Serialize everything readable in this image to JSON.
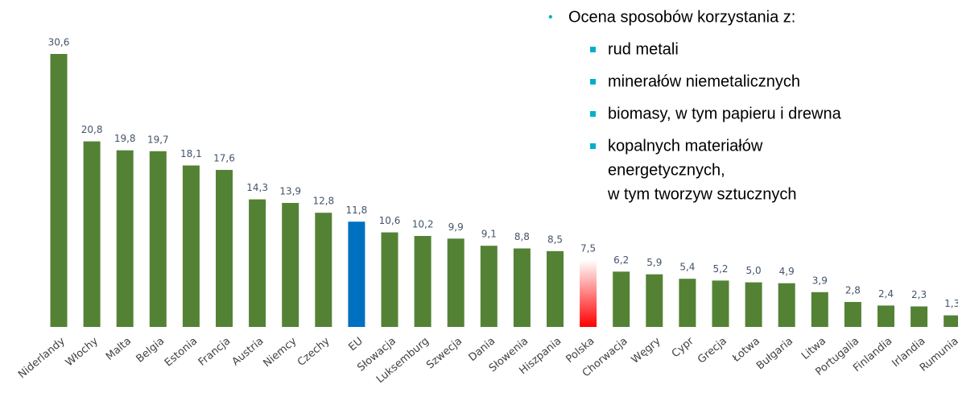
{
  "chart_data": {
    "type": "bar",
    "categories": [
      "Niderlandy",
      "Włochy",
      "Malta",
      "Belgia",
      "Estonia",
      "Francja",
      "Austria",
      "Niemcy",
      "Czechy",
      "EU",
      "Słowacja",
      "Luksemburg",
      "Szwecja",
      "Dania",
      "Słowenia",
      "Hiszpania",
      "Polska",
      "Chorwacja",
      "Węgry",
      "Cypr",
      "Grecja",
      "Łotwa",
      "Bułgaria",
      "Litwa",
      "Portugalia",
      "Finlandia",
      "Irlandia",
      "Rumunia"
    ],
    "values": [
      30.6,
      20.8,
      19.8,
      19.7,
      18.1,
      17.6,
      14.3,
      13.9,
      12.8,
      11.8,
      10.6,
      10.2,
      9.9,
      9.1,
      8.8,
      8.5,
      7.5,
      6.2,
      5.9,
      5.4,
      5.2,
      5.0,
      4.9,
      3.9,
      2.8,
      2.4,
      2.3,
      1.3
    ],
    "value_labels": [
      "30,6",
      "20,8",
      "19,8",
      "19,7",
      "18,1",
      "17,6",
      "14,3",
      "13,9",
      "12,8",
      "11,8",
      "10,6",
      "10,2",
      "9,9",
      "9,1",
      "8,8",
      "8,5",
      "7,5",
      "6,2",
      "5,9",
      "5,4",
      "5,2",
      "5,0",
      "4,9",
      "3,9",
      "2,8",
      "2,4",
      "2,3",
      "1,3"
    ],
    "color": "#548235",
    "highlight": {
      "index": 9,
      "color": "#0070c0"
    },
    "gradient_bar": {
      "index": 16,
      "color": "#ff0000"
    },
    "annotation": {
      "title": "Ocena sposobów korzystania z:",
      "items": [
        [
          "rud metali"
        ],
        [
          "minerałów niemetalicznych"
        ],
        [
          "biomasy, w tym papieru i drewna"
        ],
        [
          "kopalnych materiałów",
          "energetycznych,",
          "w tym tworzyw sztucznych"
        ]
      ]
    }
  }
}
